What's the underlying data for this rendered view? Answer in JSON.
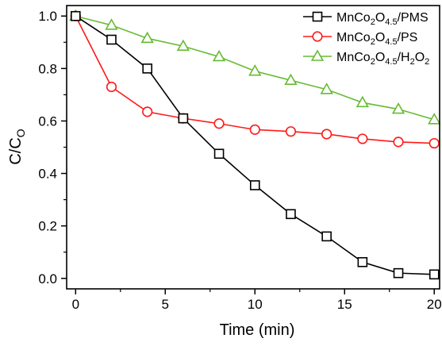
{
  "chart_data": {
    "type": "line",
    "title": "",
    "xlabel": "Time (min)",
    "ylabel": "C/C",
    "ylabel_sub": "O",
    "xlim": [
      -0.5,
      20.3
    ],
    "ylim": [
      -0.04,
      1.04
    ],
    "x_ticks": [
      0,
      5,
      10,
      15,
      20
    ],
    "x_tick_labels": [
      "0",
      "5",
      "10",
      "15",
      "20"
    ],
    "y_ticks": [
      0.0,
      0.2,
      0.4,
      0.6,
      0.8,
      1.0
    ],
    "y_tick_labels": [
      "0.0",
      "0.2",
      "0.4",
      "0.6",
      "0.8",
      "1.0"
    ],
    "grid": false,
    "legend_position": "top-right",
    "series": [
      {
        "name": "MnCo2O4.5/PMS",
        "legend": [
          {
            "t": "MnCo",
            "s": "n"
          },
          {
            "t": "2",
            "s": "sub"
          },
          {
            "t": "O",
            "s": "n"
          },
          {
            "t": "4.5",
            "s": "sub"
          },
          {
            "t": "/PMS",
            "s": "n"
          }
        ],
        "color": "#000000",
        "marker": "square",
        "x": [
          0,
          2,
          4,
          6,
          8,
          10,
          12,
          14,
          16,
          18,
          20
        ],
        "y": [
          1.0,
          0.91,
          0.8,
          0.61,
          0.475,
          0.355,
          0.245,
          0.16,
          0.062,
          0.02,
          0.015
        ]
      },
      {
        "name": "MnCo2O4.5/PS",
        "legend": [
          {
            "t": "MnCo",
            "s": "n"
          },
          {
            "t": "2",
            "s": "sub"
          },
          {
            "t": "O",
            "s": "n"
          },
          {
            "t": "4.5",
            "s": "sub"
          },
          {
            "t": "/PS",
            "s": "n"
          }
        ],
        "color": "#ff1a1a",
        "marker": "circle",
        "x": [
          0,
          2,
          4,
          6,
          8,
          10,
          12,
          14,
          16,
          18,
          20
        ],
        "y": [
          1.0,
          0.73,
          0.635,
          0.61,
          0.59,
          0.567,
          0.56,
          0.55,
          0.532,
          0.52,
          0.515
        ]
      },
      {
        "name": "MnCo2O4.5/H2O2",
        "legend": [
          {
            "t": "MnCo",
            "s": "n"
          },
          {
            "t": "2",
            "s": "sub"
          },
          {
            "t": "O",
            "s": "n"
          },
          {
            "t": "4.5",
            "s": "sub"
          },
          {
            "t": "/H",
            "s": "n"
          },
          {
            "t": "2",
            "s": "sub"
          },
          {
            "t": "O",
            "s": "n"
          },
          {
            "t": "2",
            "s": "sub"
          }
        ],
        "color": "#66bb33",
        "marker": "triangle",
        "x": [
          0,
          2,
          4,
          6,
          8,
          10,
          12,
          14,
          16,
          18,
          20
        ],
        "y": [
          1.0,
          0.965,
          0.915,
          0.885,
          0.845,
          0.79,
          0.755,
          0.72,
          0.67,
          0.645,
          0.605
        ]
      }
    ]
  }
}
